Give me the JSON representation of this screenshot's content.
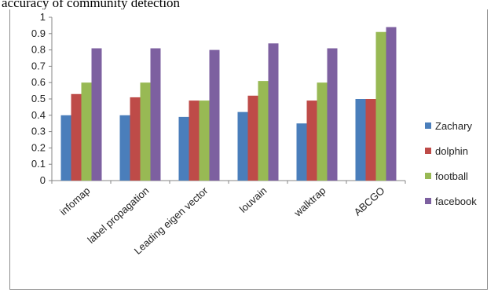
{
  "caption": "accuracy of community detection",
  "chart_data": {
    "type": "bar",
    "categories": [
      "infomap",
      "label propagation",
      "Leading eigen vector",
      "louvain",
      "walktrap",
      "ABCGO"
    ],
    "series": [
      {
        "name": "Zachary",
        "color": "#4a7ebb",
        "values": [
          0.4,
          0.4,
          0.39,
          0.42,
          0.35,
          0.5
        ]
      },
      {
        "name": "dolphin",
        "color": "#be4b48",
        "values": [
          0.53,
          0.51,
          0.49,
          0.52,
          0.49,
          0.5
        ]
      },
      {
        "name": "football",
        "color": "#98b954",
        "values": [
          0.6,
          0.6,
          0.49,
          0.61,
          0.6,
          0.91
        ]
      },
      {
        "name": "facebook",
        "color": "#7d60a0",
        "values": [
          0.81,
          0.81,
          0.8,
          0.84,
          0.81,
          0.94
        ]
      }
    ],
    "ylim": [
      0,
      1
    ],
    "yticks": [
      "0",
      "0.1",
      "0.2",
      "0.3",
      "0.4",
      "0.5",
      "0.6",
      "0.7",
      "0.8",
      "0.9",
      "1"
    ],
    "grid": false,
    "legend_position": "right"
  }
}
